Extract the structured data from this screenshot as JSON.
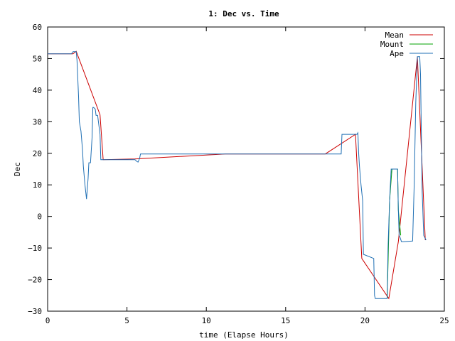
{
  "chart_data": {
    "type": "line",
    "title": "1: Dec vs. Time",
    "xlabel": "time (Elapse Hours)",
    "ylabel": "Dec",
    "xlim": [
      0,
      25
    ],
    "ylim": [
      -30,
      60
    ],
    "xticks": [
      0,
      5,
      10,
      15,
      20,
      25
    ],
    "yticks": [
      -30,
      -20,
      -10,
      0,
      10,
      20,
      30,
      40,
      50,
      60
    ],
    "grid": false,
    "legend": "top-right",
    "series": [
      {
        "name": "Mean",
        "color": "#cc0000",
        "x": [
          0,
          1.6,
          1.8,
          3.3,
          3.5,
          5.5,
          11.2,
          17.5,
          19.4,
          19.8,
          21.5,
          22.1,
          23.3,
          23.8
        ],
        "y": [
          51.5,
          51.5,
          52.3,
          32.2,
          18.0,
          18.2,
          19.8,
          19.8,
          26.0,
          -13.3,
          -26.0,
          -8.0,
          50.6,
          -7.5
        ]
      },
      {
        "name": "Mount",
        "color": "#00a000",
        "x": [
          21.4,
          21.55,
          21.7,
          22.05,
          22.1,
          22.25
        ],
        "y": [
          -26.0,
          5.0,
          15.0,
          15.0,
          2.0,
          -6.0
        ]
      },
      {
        "name": "Ape",
        "color": "#1f6fb4",
        "x": [
          0,
          1.5,
          1.6,
          1.8,
          1.85,
          1.95,
          2.0,
          2.1,
          2.2,
          2.25,
          2.35,
          2.45,
          2.55,
          2.6,
          2.7,
          2.8,
          2.85,
          2.9,
          3.0,
          3.05,
          3.15,
          3.3,
          3.35,
          3.4,
          3.5,
          5.5,
          5.6,
          5.7,
          5.8,
          5.85,
          18.5,
          18.55,
          19.5,
          19.55,
          19.6,
          19.65,
          19.75,
          19.85,
          19.9,
          20.55,
          20.6,
          20.65,
          20.7,
          20.75,
          21.4,
          21.45,
          21.55,
          21.6,
          21.65,
          21.7,
          22.05,
          22.1,
          22.15,
          22.2,
          22.3,
          22.4,
          23.0,
          23.1,
          23.2,
          23.3,
          23.45,
          23.5,
          23.6,
          23.7,
          23.85
        ],
        "y": [
          51.5,
          51.5,
          52.2,
          52.2,
          49.5,
          38.0,
          30.0,
          27.0,
          21.0,
          16.0,
          10.0,
          5.5,
          12.0,
          17.0,
          17.0,
          25.0,
          34.5,
          34.5,
          34.0,
          32.0,
          32.0,
          26.0,
          18.0,
          18.0,
          18.0,
          18.0,
          17.5,
          17.2,
          18.5,
          19.8,
          19.8,
          26.0,
          26.0,
          26.5,
          20.0,
          16.0,
          10.0,
          5.0,
          -12.0,
          -13.3,
          -25.0,
          -26.0,
          -26.0,
          -26.0,
          -26.0,
          -10.0,
          5.0,
          10.0,
          15.0,
          15.0,
          15.0,
          2.0,
          -6.0,
          -6.5,
          -8.0,
          -8.0,
          -7.8,
          10.0,
          36.0,
          50.6,
          50.6,
          45.0,
          8.0,
          -6.0,
          -7.5
        ]
      }
    ]
  }
}
